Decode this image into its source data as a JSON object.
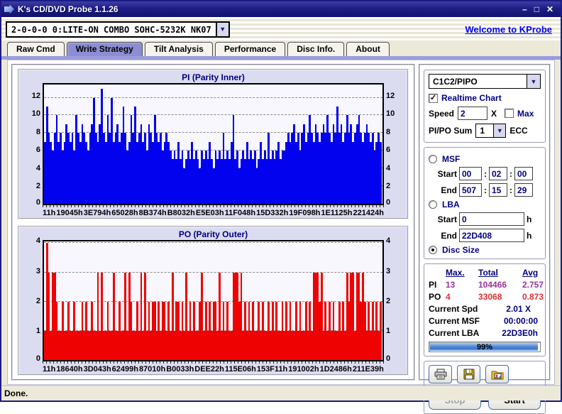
{
  "window": {
    "title": "K's CD/DVD Probe 1.1.26",
    "controls": {
      "minimize": "–",
      "maximize": "□",
      "close": "✕"
    }
  },
  "toolbar": {
    "drive_combo_value": "2-0-0-0 0:LITE-ON COMBO SOHC-5232K NK07",
    "welcome_link": "Welcome to KProbe",
    "dropdown_glyph": "▼"
  },
  "tabs": [
    {
      "label": "Raw Cmd",
      "selected": false
    },
    {
      "label": "Write Strategy",
      "selected": true
    },
    {
      "label": "Tilt Analysis",
      "selected": false
    },
    {
      "label": "Performance",
      "selected": false
    },
    {
      "label": "Disc Info.",
      "selected": false
    },
    {
      "label": "About",
      "selected": false
    }
  ],
  "controls_panel": {
    "mode_combo_value": "C1C2/PIPO",
    "realtime": {
      "label": "Realtime Chart",
      "checked": true,
      "check_glyph": "✓"
    },
    "speed": {
      "label": "Speed",
      "value": "2",
      "unit": "X"
    },
    "max": {
      "label": "Max",
      "checked": false,
      "check_glyph": "✓"
    },
    "sum": {
      "label": "PI/PO Sum",
      "value": "1",
      "unit": "ECC"
    }
  },
  "range_panel": {
    "msf": {
      "label": "MSF",
      "selected": false,
      "start_label": "Start",
      "start": [
        "00",
        "02",
        "00"
      ],
      "end_label": "End",
      "end": [
        "507",
        "15",
        "29"
      ],
      "sep": ":"
    },
    "lba": {
      "label": "LBA",
      "selected": false,
      "start_label": "Start",
      "start": "0",
      "end_label": "End",
      "end": "22D408",
      "unit": "h"
    },
    "disc_size": {
      "label": "Disc Size",
      "selected": true
    }
  },
  "stats": {
    "headers": {
      "max": "Max.",
      "total": "Total",
      "avg": "Avg"
    },
    "rows": [
      {
        "label": "PI",
        "max": "13",
        "total": "104466",
        "avg": "2.757"
      },
      {
        "label": "PO",
        "max": "4",
        "total": "33068",
        "avg": "0.873"
      }
    ],
    "current": [
      {
        "label": "Current Spd",
        "value": "2.01  X"
      },
      {
        "label": "Current MSF",
        "value": "00:00:00"
      },
      {
        "label": "Current LBA",
        "value": "22D3E0h"
      }
    ],
    "progress_pct": "99%"
  },
  "actions": {
    "stop_label": "Stop",
    "start_label": "Start",
    "icon_buttons": [
      "print",
      "save",
      "open-image"
    ]
  },
  "status_bar": {
    "text": "Done."
  },
  "chart_data": [
    {
      "type": "bar",
      "title": "PI (Parity Inner)",
      "color": "#0202ee",
      "ylim": [
        0,
        13.5
      ],
      "yticks": [
        0,
        2,
        4,
        6,
        8,
        10,
        12
      ],
      "grid_yticks": [
        2,
        4,
        6,
        8,
        10,
        12
      ],
      "x_tick_labels": [
        "11h",
        "19045h",
        "3E794h",
        "65028h",
        "8B374h",
        "B8032h",
        "E5E03h",
        "11F048h",
        "15D332h",
        "19F098h",
        "1E1125h",
        "221424h"
      ],
      "values": [
        7,
        11,
        8,
        7,
        6,
        8,
        10,
        7,
        8,
        6,
        7,
        9,
        8,
        7,
        8,
        6,
        10,
        8,
        7,
        9,
        8,
        7,
        6,
        8,
        9,
        12,
        8,
        7,
        9,
        13,
        8,
        7,
        10,
        8,
        12,
        7,
        8,
        9,
        7,
        8,
        11,
        8,
        6,
        7,
        10,
        8,
        11,
        7,
        8,
        9,
        7,
        8,
        6,
        9,
        8,
        7,
        10,
        8,
        7,
        8,
        6,
        7,
        8,
        7,
        6,
        5,
        6,
        5,
        7,
        5,
        6,
        4,
        5,
        6,
        5,
        7,
        5,
        6,
        5,
        4,
        6,
        5,
        6,
        5,
        7,
        5,
        4,
        6,
        5,
        6,
        5,
        8,
        5,
        6,
        5,
        7,
        10,
        5,
        6,
        4,
        5,
        6,
        5,
        7,
        5,
        6,
        5,
        6,
        4,
        5,
        7,
        5,
        6,
        5,
        8,
        5,
        6,
        5,
        6,
        7,
        5,
        6,
        6,
        7,
        8,
        7,
        8,
        9,
        7,
        8,
        6,
        8,
        9,
        7,
        8,
        10,
        8,
        7,
        9,
        8,
        7,
        8,
        9,
        8,
        10,
        8,
        7,
        9,
        8,
        11,
        8,
        9,
        7,
        8,
        10,
        8,
        9,
        7,
        8,
        9,
        10,
        8,
        7,
        8,
        9,
        8,
        7,
        8,
        6,
        7,
        8,
        7
      ]
    },
    {
      "type": "bar",
      "title": "PO (Parity Outer)",
      "color": "#ee0202",
      "ylim": [
        0,
        4.07
      ],
      "yticks": [
        0,
        1,
        2,
        3,
        4
      ],
      "grid_yticks": [
        1,
        2,
        3,
        4
      ],
      "x_tick_labels": [
        "11h",
        "18640h",
        "3D043h",
        "62499h",
        "87010h",
        "B0033h",
        "DEE22h",
        "115E06h",
        "153F11h",
        "191002h",
        "1D2486h",
        "211E39h"
      ],
      "values": [
        1,
        4,
        3,
        1,
        3,
        3,
        2,
        1,
        1,
        2,
        1,
        1,
        2,
        1,
        1,
        2,
        1,
        1,
        1,
        2,
        1,
        2,
        1,
        1,
        2,
        1,
        1,
        3,
        1,
        3,
        1,
        1,
        2,
        1,
        1,
        3,
        1,
        1,
        2,
        1,
        1,
        3,
        1,
        3,
        2,
        1,
        1,
        2,
        1,
        3,
        1,
        3,
        1,
        2,
        1,
        2,
        2,
        1,
        2,
        1,
        2,
        2,
        1,
        2,
        1,
        3,
        1,
        2,
        2,
        1,
        2,
        1,
        3,
        1,
        2,
        1,
        2,
        1,
        1,
        2,
        3,
        1,
        2,
        1,
        2,
        1,
        2,
        2,
        1,
        3,
        1,
        2,
        1,
        2,
        1,
        1,
        3,
        3,
        3,
        2,
        3,
        1,
        2,
        1,
        2,
        1,
        2,
        1,
        1,
        2,
        1,
        2,
        1,
        1,
        2,
        1,
        2,
        1,
        2,
        1,
        1,
        2,
        1,
        2,
        1,
        2,
        1,
        1,
        2,
        1,
        2,
        1,
        1,
        2,
        1,
        2,
        1,
        3,
        3,
        3,
        2,
        3,
        1,
        2,
        1,
        2,
        1,
        2,
        1,
        1,
        2,
        1,
        2,
        1,
        3,
        2,
        3,
        3,
        1,
        3,
        3,
        2,
        3,
        2,
        1,
        2,
        1,
        2,
        1,
        2,
        1,
        2
      ]
    }
  ]
}
